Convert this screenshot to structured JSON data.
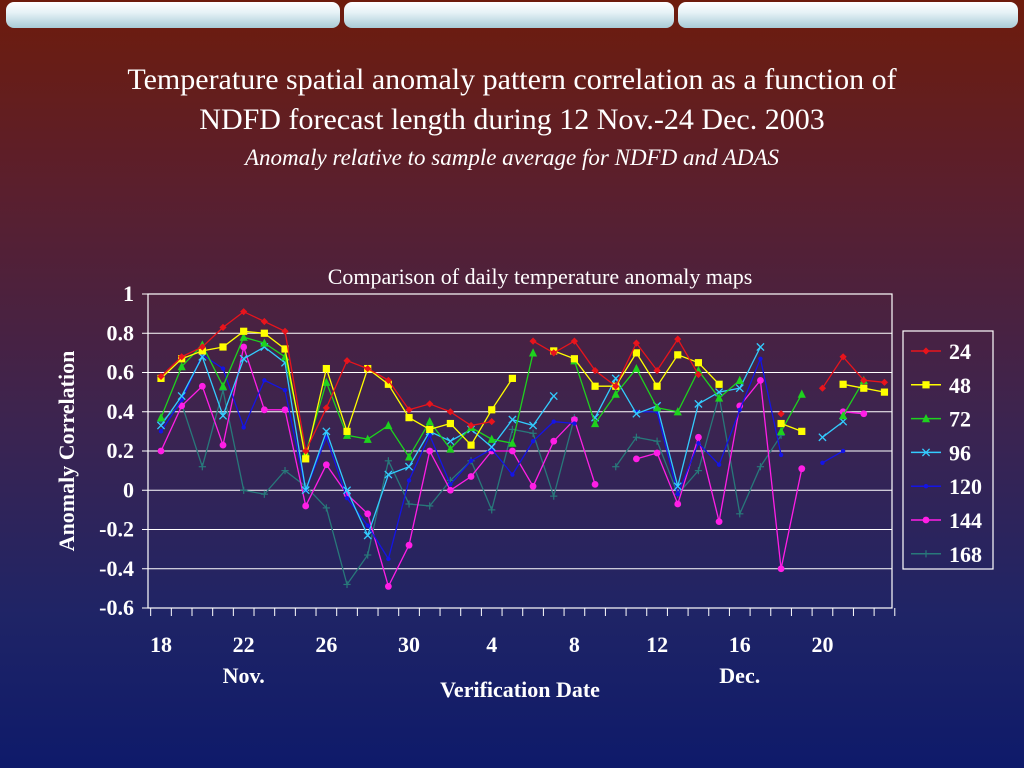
{
  "slide": {
    "title_line1": "Temperature spatial anomaly pattern correlation as a function of",
    "title_line2": "NDFD forecast length during 12 Nov.-24 Dec. 2003",
    "subtitle": "Anomaly relative to sample average for NDFD and ADAS"
  },
  "chart_data": {
    "type": "line",
    "title": "Comparison of daily temperature anomaly maps",
    "xlabel": "Verification Date",
    "ylabel": "Anomaly Correlation",
    "ylim": [
      -0.6,
      1.0
    ],
    "yticks": [
      "1",
      "0.8",
      "0.6",
      "0.4",
      "0.2",
      "0",
      "-0.2",
      "-0.4",
      "-0.6"
    ],
    "xticks": [
      "18",
      "22",
      "26",
      "30",
      "4",
      "8",
      "12",
      "16",
      "20"
    ],
    "month_labels": [
      "Nov.",
      "Dec."
    ],
    "grid": true,
    "legend_position": "right",
    "dates": [
      "18 Nov",
      "19 Nov",
      "20 Nov",
      "21 Nov",
      "22 Nov",
      "23 Nov",
      "24 Nov",
      "25 Nov",
      "26 Nov",
      "27 Nov",
      "28 Nov",
      "29 Nov",
      "30 Nov",
      "1 Dec",
      "2 Dec",
      "3 Dec",
      "4 Dec",
      "5 Dec",
      "6 Dec",
      "7 Dec",
      "8 Dec",
      "9 Dec",
      "10 Dec",
      "11 Dec",
      "12 Dec",
      "13 Dec",
      "14 Dec",
      "15 Dec",
      "16 Dec",
      "17 Dec",
      "18 Dec",
      "19 Dec",
      "20 Dec",
      "21 Dec",
      "22 Dec",
      "23 Dec"
    ],
    "series": [
      {
        "name": "24",
        "color": "#e8141c",
        "marker": "diamond",
        "values": [
          0.58,
          0.68,
          0.73,
          0.83,
          0.91,
          0.86,
          0.81,
          0.2,
          0.42,
          0.66,
          0.62,
          0.56,
          0.41,
          0.44,
          0.4,
          0.33,
          0.35,
          null,
          0.76,
          0.7,
          0.76,
          0.61,
          0.53,
          0.75,
          0.61,
          0.77,
          0.59,
          null,
          null,
          null,
          0.39,
          null,
          0.52,
          0.68,
          0.56,
          0.55
        ]
      },
      {
        "name": "48",
        "color": "#ffff00",
        "marker": "square",
        "values": [
          0.57,
          0.67,
          0.71,
          0.73,
          0.81,
          0.8,
          0.72,
          0.16,
          0.62,
          0.3,
          0.62,
          0.54,
          0.37,
          0.31,
          0.34,
          0.23,
          0.41,
          0.57,
          null,
          0.71,
          0.67,
          0.53,
          0.53,
          0.7,
          0.53,
          0.69,
          0.65,
          0.54,
          null,
          null,
          0.34,
          0.3,
          null,
          0.54,
          0.52,
          0.5
        ]
      },
      {
        "name": "72",
        "color": "#1ed21e",
        "marker": "triangle",
        "values": [
          0.37,
          0.63,
          0.74,
          0.53,
          0.78,
          0.75,
          0.68,
          0.19,
          0.55,
          0.28,
          0.26,
          0.33,
          0.17,
          0.35,
          0.21,
          0.32,
          0.26,
          0.24,
          0.7,
          null,
          0.66,
          0.34,
          0.49,
          0.62,
          0.42,
          0.4,
          0.61,
          0.47,
          0.56,
          null,
          0.3,
          0.49,
          null,
          0.38,
          0.56,
          null
        ]
      },
      {
        "name": "96",
        "color": "#33ccff",
        "marker": "x",
        "values": [
          0.33,
          0.48,
          0.68,
          0.38,
          0.67,
          0.73,
          0.65,
          0.0,
          0.3,
          0.0,
          -0.23,
          0.08,
          0.12,
          0.3,
          0.25,
          0.31,
          0.22,
          0.36,
          0.33,
          0.48,
          null,
          0.37,
          0.57,
          0.39,
          0.43,
          0.02,
          0.44,
          0.5,
          0.52,
          0.73,
          null,
          null,
          0.27,
          0.35,
          null,
          null
        ]
      },
      {
        "name": "120",
        "color": "#1414e6",
        "marker": "dot",
        "values": [
          0.3,
          0.46,
          0.69,
          0.62,
          0.32,
          0.56,
          0.51,
          0.0,
          0.27,
          -0.04,
          -0.18,
          -0.35,
          0.05,
          0.28,
          0.03,
          0.15,
          0.21,
          0.08,
          0.25,
          0.35,
          0.34,
          null,
          null,
          0.4,
          0.4,
          -0.02,
          0.24,
          0.13,
          0.41,
          0.67,
          0.18,
          null,
          0.14,
          0.2,
          null,
          null
        ]
      },
      {
        "name": "144",
        "color": "#ff1ee6",
        "marker": "circle",
        "values": [
          0.2,
          0.43,
          0.53,
          0.23,
          0.73,
          0.41,
          0.41,
          -0.08,
          0.13,
          -0.02,
          -0.12,
          -0.49,
          -0.28,
          0.2,
          0.0,
          0.07,
          0.2,
          0.2,
          0.02,
          0.25,
          0.36,
          0.03,
          null,
          0.16,
          0.19,
          -0.07,
          0.27,
          -0.16,
          0.43,
          0.56,
          -0.4,
          0.11,
          null,
          0.4,
          0.39,
          null
        ]
      },
      {
        "name": "168",
        "color": "#28787a",
        "marker": "plus",
        "values": [
          0.35,
          0.44,
          0.12,
          0.51,
          0.0,
          -0.02,
          0.1,
          0.02,
          -0.09,
          -0.48,
          -0.33,
          0.15,
          -0.07,
          -0.08,
          0.05,
          0.15,
          -0.1,
          0.31,
          0.29,
          -0.03,
          0.37,
          null,
          0.12,
          0.27,
          0.25,
          -0.02,
          0.1,
          0.48,
          -0.12,
          0.12,
          0.28,
          null,
          null,
          null,
          null,
          null
        ]
      }
    ]
  }
}
